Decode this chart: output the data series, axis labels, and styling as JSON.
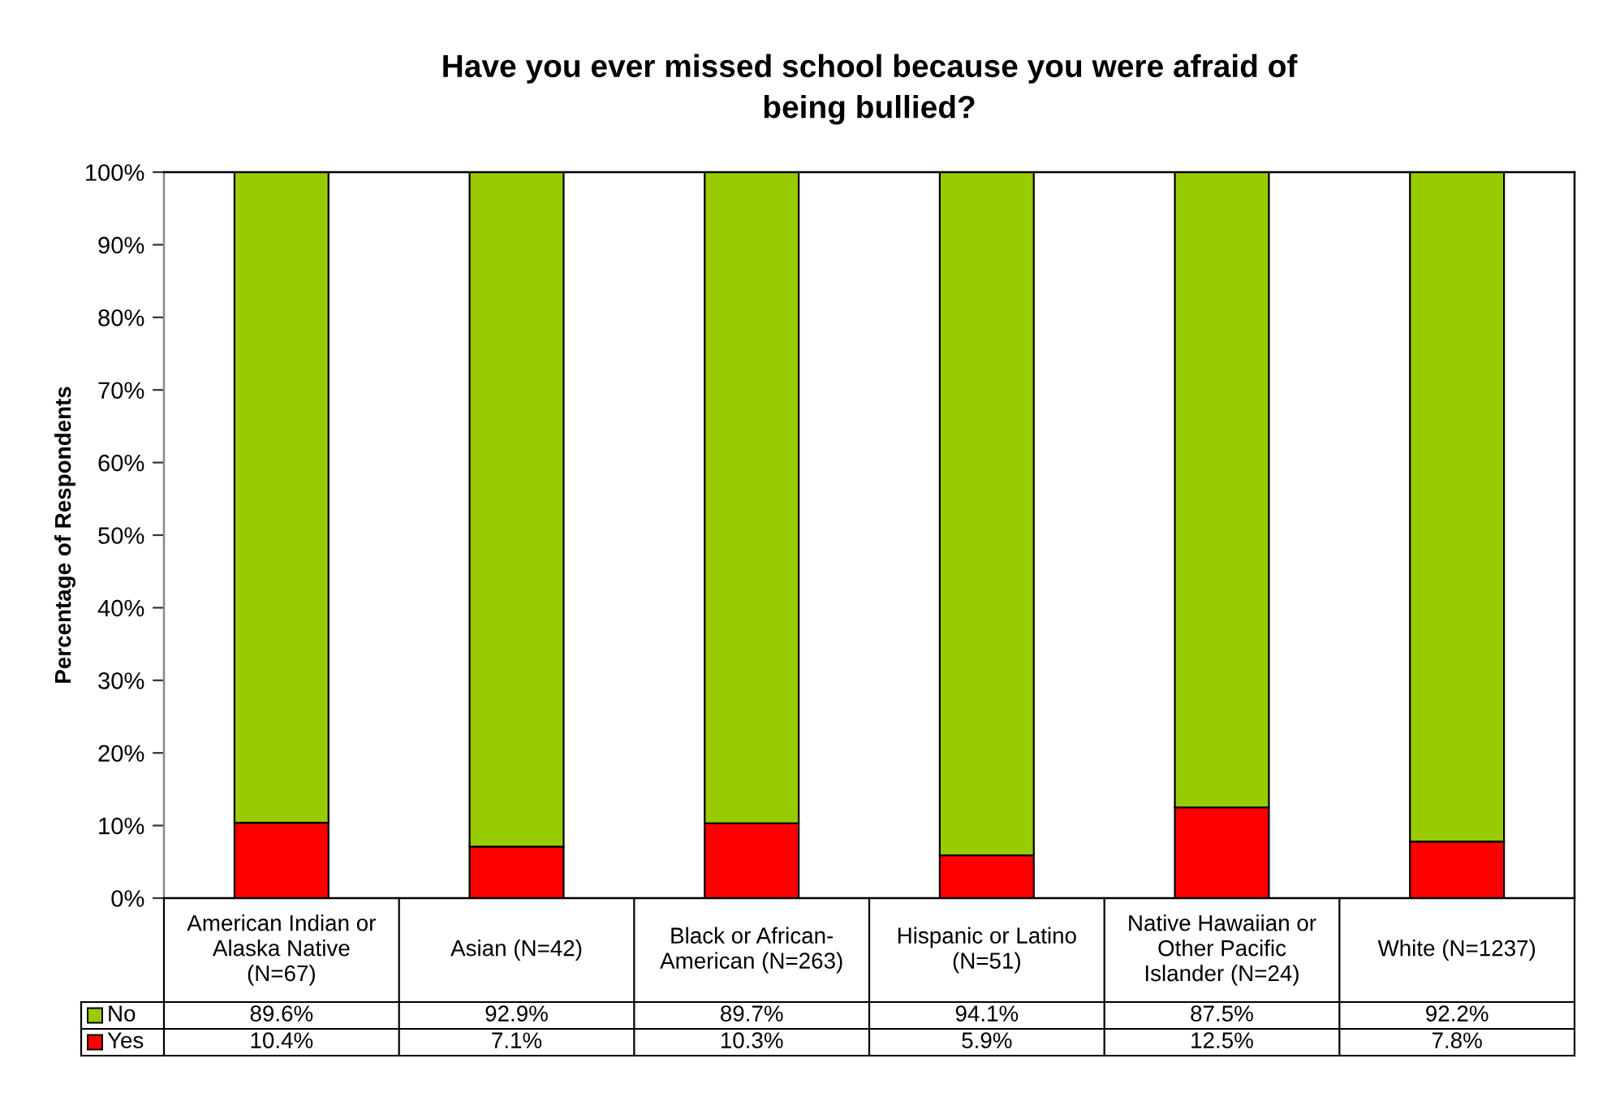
{
  "chart_data": {
    "type": "bar",
    "title": "Have you ever missed school because you were afraid of\nbeing bullied?",
    "ylabel": "Percentage of Respondents",
    "categories": [
      "American Indian or\nAlaska Native\n(N=67)",
      "Asian (N=42)",
      "Black or African-\nAmerican (N=263)",
      "Hispanic or Latino\n(N=51)",
      "Native Hawaiian or\nOther Pacific\nIslander (N=24)",
      "White (N=1237)"
    ],
    "series": [
      {
        "name": "Yes",
        "color": "#ff0000",
        "values": [
          10.4,
          7.1,
          10.3,
          5.9,
          12.5,
          7.8
        ],
        "value_labels": [
          "10.4%",
          "7.1%",
          "10.3%",
          "5.9%",
          "12.5%",
          "7.8%"
        ]
      },
      {
        "name": "No",
        "color": "#99cc00",
        "values": [
          89.6,
          92.9,
          89.7,
          94.1,
          87.5,
          92.2
        ],
        "value_labels": [
          "89.6%",
          "92.9%",
          "89.7%",
          "94.1%",
          "87.5%",
          "92.2%"
        ]
      }
    ],
    "stacked": true,
    "ylim": [
      0,
      100
    ],
    "yticks": [
      {
        "value": 0,
        "label": "0%"
      },
      {
        "value": 10,
        "label": "10%"
      },
      {
        "value": 20,
        "label": "20%"
      },
      {
        "value": 30,
        "label": "30%"
      },
      {
        "value": 40,
        "label": "40%"
      },
      {
        "value": 50,
        "label": "50%"
      },
      {
        "value": 60,
        "label": "60%"
      },
      {
        "value": 70,
        "label": "70%"
      },
      {
        "value": 80,
        "label": "80%"
      },
      {
        "value": 90,
        "label": "90%"
      },
      {
        "value": 100,
        "label": "100%"
      }
    ],
    "legend": "bottom"
  }
}
